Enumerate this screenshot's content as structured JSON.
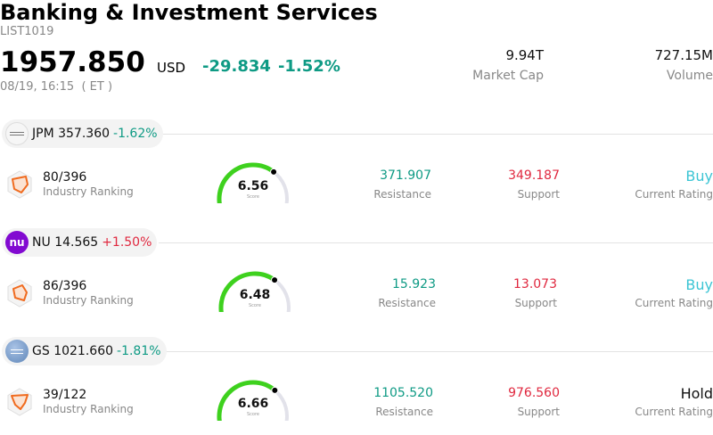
{
  "header": {
    "title": "Banking & Investment Services",
    "code": "LIST1019",
    "price": "1957.850",
    "currency": "USD",
    "change": "-29.834",
    "change_pct": "-1.52%",
    "timestamp": "08/19, 16:15  ( ET )",
    "market_cap": {
      "value": "9.94T",
      "label": "Market Cap"
    },
    "volume": {
      "value": "727.15M",
      "label": "Volume"
    }
  },
  "colors": {
    "positive": "#e0283f",
    "negative": "#0e9a84",
    "buy": "#3cc5d4",
    "gauge": "#3ed11e"
  },
  "stocks": [
    {
      "logo": "jpm-logo",
      "ticker": "JPM",
      "price": "357.360",
      "change": "-1.62%",
      "rank": "80/396",
      "rank_label": "Industry Ranking",
      "score": "6.56",
      "score_value": 6.56,
      "score_label": "Score",
      "resistance": "371.907",
      "resistance_label": "Resistance",
      "support": "349.187",
      "support_label": "Support",
      "rating": "Buy",
      "rating_label": "Current Rating"
    },
    {
      "logo": "nu-logo",
      "ticker": "NU",
      "price": "14.565",
      "change": "+1.50%",
      "rank": "86/396",
      "rank_label": "Industry Ranking",
      "score": "6.48",
      "score_value": 6.48,
      "score_label": "Score",
      "resistance": "15.923",
      "resistance_label": "Resistance",
      "support": "13.073",
      "support_label": "Support",
      "rating": "Buy",
      "rating_label": "Current Rating"
    },
    {
      "logo": "gs-logo",
      "ticker": "GS",
      "price": "1021.660",
      "change": "-1.81%",
      "rank": "39/122",
      "rank_label": "Industry Ranking",
      "score": "6.66",
      "score_value": 6.66,
      "score_label": "Score",
      "resistance": "1105.520",
      "resistance_label": "Resistance",
      "support": "976.560",
      "support_label": "Support",
      "rating": "Hold",
      "rating_label": "Current Rating"
    }
  ]
}
